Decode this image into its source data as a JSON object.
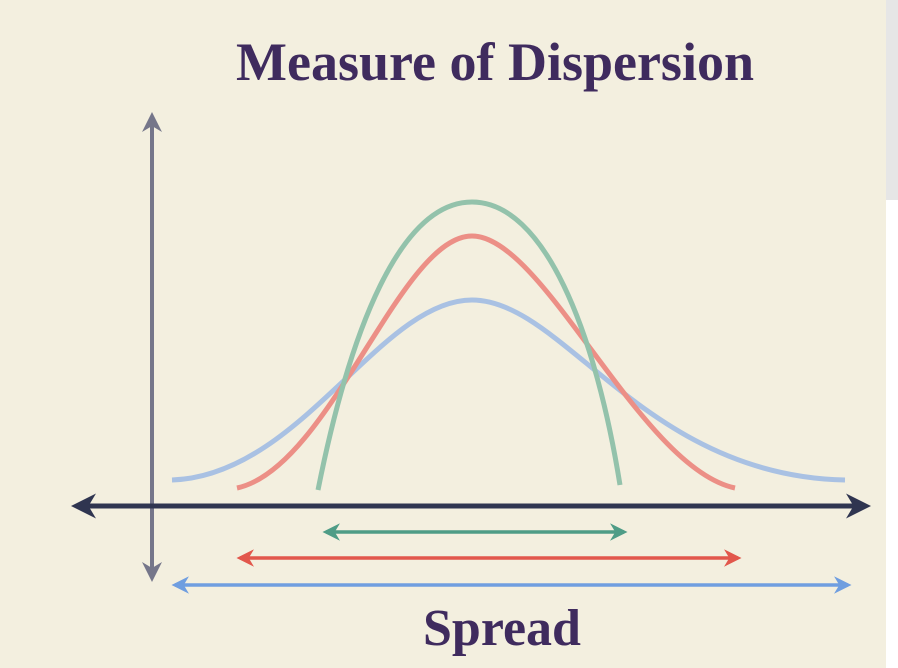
{
  "title": "Measure of Dispersion",
  "label": "Spread"
}
